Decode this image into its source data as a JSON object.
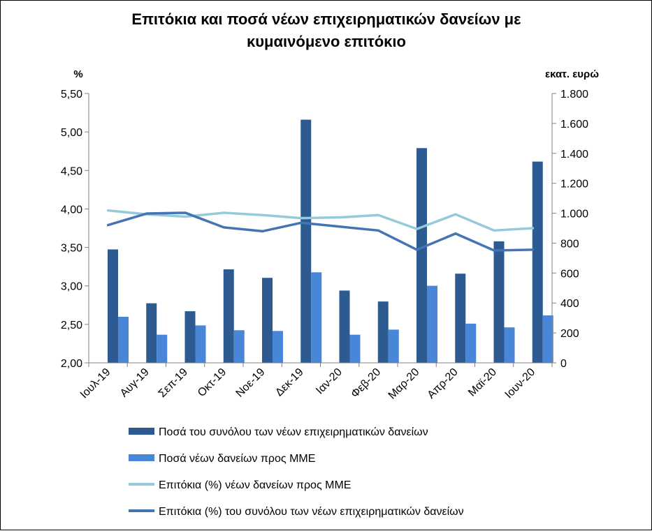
{
  "chart_data": {
    "type": "bar",
    "title_lines": [
      "Επιτόκια και ποσά νέων επιχειρηματικών δανείων με",
      "κυμαινόμενο επιτόκιο"
    ],
    "ylabel_left": "%",
    "ylabel_right": "εκατ. ευρώ",
    "categories": [
      "Ιουλ-19",
      "Αυγ-19",
      "Σεπ-19",
      "Οκτ-19",
      "Νοε-19",
      "Δεκ-19",
      "Ιαν-20",
      "Φεβ-20",
      "Μαρ-20",
      "Απρ-20",
      "Μαϊ-20",
      "Ιουν-20"
    ],
    "left_axis": {
      "min": 2.0,
      "max": 5.5,
      "ticks": [
        "2,00",
        "2,50",
        "3,00",
        "3,50",
        "4,00",
        "4,50",
        "5,00",
        "5,50"
      ],
      "tick_values": [
        2.0,
        2.5,
        3.0,
        3.5,
        4.0,
        4.5,
        5.0,
        5.5
      ]
    },
    "right_axis": {
      "min": 0,
      "max": 1800,
      "ticks": [
        "0",
        "200",
        "400",
        "600",
        "800",
        "1.000",
        "1.200",
        "1.400",
        "1.600",
        "1.800"
      ],
      "tick_values": [
        0,
        200,
        400,
        600,
        800,
        1000,
        1200,
        1400,
        1600,
        1800
      ]
    },
    "grid": false,
    "legend_position": "bottom",
    "series": [
      {
        "name": "Ποσά του συνόλου των νέων επιχειρηματικών δανείων",
        "kind": "bar",
        "axis": "right",
        "color": "#2E5A92",
        "values": [
          758,
          398,
          345,
          625,
          568,
          1625,
          483,
          410,
          1435,
          596,
          812,
          1345
        ]
      },
      {
        "name": "Ποσά νέων δανείων προς ΜΜΕ",
        "kind": "bar",
        "axis": "right",
        "color": "#4A86D8",
        "values": [
          308,
          188,
          250,
          218,
          213,
          605,
          188,
          222,
          515,
          262,
          237,
          317
        ]
      },
      {
        "name": "Επιτόκια (%) νέων δανείων προς ΜΜΕ",
        "kind": "line",
        "axis": "left",
        "color": "#95CAD8",
        "values": [
          3.98,
          3.93,
          3.9,
          3.95,
          3.92,
          3.88,
          3.89,
          3.92,
          3.74,
          3.93,
          3.72,
          3.75
        ]
      },
      {
        "name": "Επιτόκια (%) του συνόλου των νέων επιχειρηματικών δανείων",
        "kind": "line",
        "axis": "left",
        "color": "#4574B5",
        "values": [
          3.79,
          3.94,
          3.95,
          3.76,
          3.71,
          3.82,
          3.77,
          3.72,
          3.47,
          3.68,
          3.46,
          3.47
        ]
      }
    ]
  }
}
